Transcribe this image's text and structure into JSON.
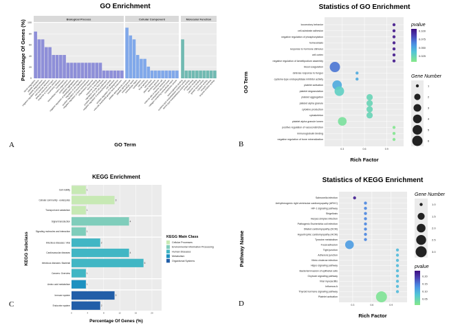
{
  "panel_labels": [
    "A",
    "B",
    "C",
    "D"
  ],
  "chart_data": [
    {
      "type": "bar",
      "title": "GO Enrichment",
      "xlabel": "GO Term",
      "ylabel": "Percentage Of Genes (%)",
      "ylim": [
        0,
        100
      ],
      "yticks": [
        0,
        20,
        40,
        60,
        80,
        100
      ],
      "facets": [
        {
          "name": "Biological Process",
          "color": "#8e8fd8",
          "categories": [
            "blood coagulation",
            "platelet activation",
            "platelet degranulation",
            "negative regulation of phosphorylation",
            "cell-substrate adhesion",
            "defense response to fungus",
            "response to hormone stimulus",
            "locomotory behavior",
            "homeostasis",
            "extracellular matrix organization",
            "cytokine production",
            "platelet aggregation",
            "negative regulation of lamellipodium assembly",
            "regulation of cell migration",
            "positive regulation of vasoconstriction",
            "negative regulation of bone mineralization",
            "inflammatory response",
            "wound healing",
            "response to wounding",
            "regulation of body fluid levels",
            "positive regulation of cell proliferation",
            "negative regulation of endopeptidase activity",
            "cell adhesion",
            "positive regulation of angiogenesis",
            "vascular endothelial growth factor production"
          ],
          "values": [
            84,
            70,
            70,
            56,
            56,
            42,
            42,
            42,
            42,
            28,
            28,
            28,
            28,
            28,
            28,
            28,
            28,
            28,
            28,
            14,
            14,
            14,
            14,
            14,
            14
          ]
        },
        {
          "name": "Cellular Component",
          "color": "#80a8ea",
          "categories": [
            "platelet alpha granule lumen",
            "platelet alpha granule",
            "extracellular space",
            "extracellular region",
            "cytoskeleton",
            "cell cortex",
            "focal adhesion",
            "cell surface",
            "plasma membrane",
            "secretory granule",
            "membrane raft",
            "external side of plasma membrane",
            "endoplasmic reticulum lumen",
            "collagen-containing extracellular matrix",
            "cytoplasmic vesicle"
          ],
          "values": [
            91,
            77,
            70,
            42,
            35,
            35,
            21,
            14,
            14,
            14,
            14,
            14,
            14,
            14,
            14
          ]
        },
        {
          "name": "Molecular Function",
          "color": "#70bab2",
          "categories": [
            "immunoglobulin binding",
            "cysteine-type endopeptidase inhibitor activity",
            "serine-type endopeptidase inhibitor activity",
            "protein binding",
            "heparin binding",
            "calcium ion binding",
            "growth factor activity",
            "cytokine activity",
            "receptor binding",
            "enzyme inhibitor activity"
          ],
          "values": [
            70,
            14,
            14,
            14,
            14,
            14,
            14,
            14,
            14,
            14
          ]
        }
      ]
    },
    {
      "type": "scatter",
      "title": "Statistics of GO Enrichment",
      "xlabel": "Rich Factor",
      "ylabel": "GO Term",
      "xlim": [
        0.06,
        1.13
      ],
      "xticks": [
        0.3,
        0.6,
        0.9
      ],
      "terms": [
        "locomotory behavior",
        "cell-substrate adhesion",
        "negative regulation of phosphorylation",
        "homeostasis",
        "response to hormone stimulus",
        "cell cortex",
        "negative regulation of lamellipodium assembly",
        "blood coagulation",
        "defense response to fungus",
        "cysteine-type endopeptidase inhibitor activity",
        "platelet activation",
        "platelet degranulation",
        "platelet aggregation",
        "platelet alpha granule",
        "cytokine production",
        "cytoskeleton",
        "platelet alpha granule lumen",
        "positive regulation of vasoconstriction",
        "immunoglobulin binding",
        "negative regulation of bone mineralization"
      ],
      "rich_factor": [
        1,
        1,
        1,
        1,
        1,
        1,
        1,
        0.2,
        0.5,
        0.5,
        0.23,
        0.26,
        0.67,
        0.67,
        0.67,
        0.67,
        0.3,
        1,
        1,
        1
      ],
      "gene_number": [
        1,
        1,
        1,
        1,
        1,
        1,
        1,
        6,
        1,
        1,
        5,
        5,
        2,
        2,
        2,
        2,
        4,
        1,
        1,
        1
      ],
      "pvalue": [
        0.102,
        0.102,
        0.102,
        0.102,
        0.102,
        0.102,
        0.102,
        0.07,
        0.05,
        0.05,
        0.05,
        0.03,
        0.025,
        0.025,
        0.025,
        0.025,
        0.015,
        0.01,
        0.01,
        0.01
      ],
      "color_legend": {
        "title": "pvalue",
        "ticks": [
          "0.100",
          "0.075",
          "0.050",
          "0.025"
        ],
        "range": [
          0.008,
          0.106
        ]
      },
      "size_legend": {
        "title": "Gene Number",
        "values": [
          1,
          2,
          3,
          4,
          5,
          6
        ]
      }
    },
    {
      "type": "bar",
      "orientation": "horizontal",
      "title": "KEGG Enrichment",
      "xlabel": "Percentage Of Genes (%)",
      "ylabel": "KEGG Subclass",
      "xlim": [
        0,
        22.4
      ],
      "xticks": [
        0,
        4,
        8,
        12,
        16,
        20
      ],
      "legend_title": "KEGG Main Class",
      "classes": [
        {
          "name": "Cellular Processes",
          "color": "#c7e9b4",
          "subclasses": [
            "Cell motility",
            "Cellular community - eukaryotes",
            "Transport and catabolism"
          ],
          "values": [
            3.57,
            10.7,
            3.57
          ],
          "counts": [
            1,
            3,
            1
          ]
        },
        {
          "name": "Environmental Information Processing",
          "color": "#7fcdbb",
          "subclasses": [
            "Signal transduction",
            "Signaling molecules and interaction"
          ],
          "values": [
            14.3,
            3.57
          ],
          "counts": [
            4,
            1
          ]
        },
        {
          "name": "Human Diseases",
          "color": "#41b6c4",
          "subclasses": [
            "Infectious diseases: Viral",
            "Cardiovascular diseases",
            "Infectious diseases: Bacterial",
            "Cancers: Overview"
          ],
          "values": [
            7.14,
            14.3,
            17.9,
            3.57
          ],
          "counts": [
            2,
            4,
            5,
            1
          ]
        },
        {
          "name": "Metabolism",
          "color": "#1d91c0",
          "subclasses": [
            "Amino acid metabolism"
          ],
          "values": [
            3.57
          ],
          "counts": [
            1
          ]
        },
        {
          "name": "Organismal Systems",
          "color": "#225ea8",
          "subclasses": [
            "Immune system",
            "Endocrine system"
          ],
          "values": [
            10.7,
            7.14
          ],
          "counts": [
            3,
            2
          ]
        }
      ]
    },
    {
      "type": "scatter",
      "title": "Statistics of KEGG Enrichment",
      "xlabel": "Rich Factor",
      "ylabel": "Pathway Name",
      "xlim": [
        0.086,
        1.15
      ],
      "xticks": [
        0.3,
        0.6,
        0.9
      ],
      "terms": [
        "Salmonella infection",
        "Arrhythmogenic right ventricular cardiomyopathy (ARVC)",
        "HIF-1 signaling pathway",
        "Shigellosis",
        "Herpes simplex infection",
        "Pathogenic Escherichia coli infection",
        "Dilated cardiomyopathy (DCM)",
        "Hypertrophic cardiomyopathy (HCM)",
        "Tyrosine metabolism",
        "Focal adhesion",
        "Tight junction",
        "Adherens junction",
        "Vibrio cholerae infection",
        "Hippo signaling pathway",
        "Bacterial invasion of epithelial cells",
        "Oxytocin signaling pathway",
        "Viral myocarditis",
        "Influenza A",
        "Thyroid hormone signaling pathway",
        "Platelet activation"
      ],
      "rich_factor": [
        0.33,
        0.5,
        0.5,
        0.5,
        0.5,
        0.5,
        0.5,
        0.5,
        0.5,
        0.25,
        1,
        1,
        1,
        1,
        1,
        1,
        1,
        1,
        1,
        0.75
      ],
      "gene_number": [
        1,
        1,
        1,
        1,
        1,
        1,
        1,
        1,
        1,
        2,
        1,
        1,
        1,
        1,
        1,
        1,
        1,
        1,
        1,
        3
      ],
      "pvalue": [
        0.22,
        0.14,
        0.14,
        0.14,
        0.14,
        0.14,
        0.14,
        0.14,
        0.14,
        0.12,
        0.09,
        0.09,
        0.09,
        0.09,
        0.09,
        0.09,
        0.09,
        0.09,
        0.09,
        0.02
      ],
      "color_legend": {
        "title": "pvalue",
        "ticks": [
          "0.20",
          "0.15",
          "0.10",
          "0.05"
        ],
        "range": [
          0.01,
          0.235
        ]
      },
      "size_legend": {
        "title": "Gene Number",
        "values": [
          "1.0",
          "1.5",
          "2.0",
          "2.5",
          "3.0"
        ]
      }
    }
  ]
}
